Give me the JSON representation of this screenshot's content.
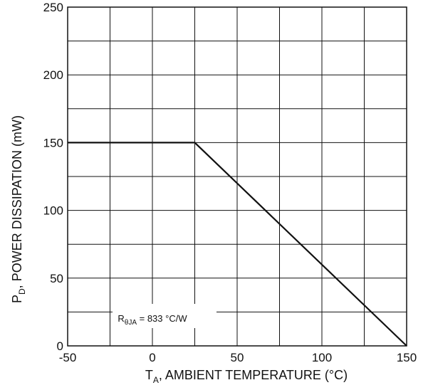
{
  "chart_data": {
    "type": "line",
    "xlabel": {
      "main": "T",
      "sub": "A",
      "rest": ", AMBIENT TEMPERATURE (°C)"
    },
    "ylabel": {
      "main": "P",
      "sub": "D",
      "rest": ", POWER DISSIPATION (mW)"
    },
    "xlim": [
      -50,
      150
    ],
    "ylim": [
      0,
      250
    ],
    "x_ticks": [
      -50,
      0,
      50,
      100,
      150
    ],
    "y_ticks": [
      0,
      50,
      100,
      150,
      200,
      250
    ],
    "x_grid_step": 25,
    "y_grid_step": 25,
    "grid": true,
    "series": [
      {
        "x": [
          -50,
          25,
          150
        ],
        "y": [
          150,
          150,
          0
        ]
      }
    ],
    "annotation": {
      "main": "R",
      "sub": "θJA",
      "rest": " = 833 °C/W",
      "x": 0,
      "y": 20
    }
  },
  "colors": {
    "line": "#111111",
    "grid": "#111111",
    "background": "#ffffff"
  }
}
